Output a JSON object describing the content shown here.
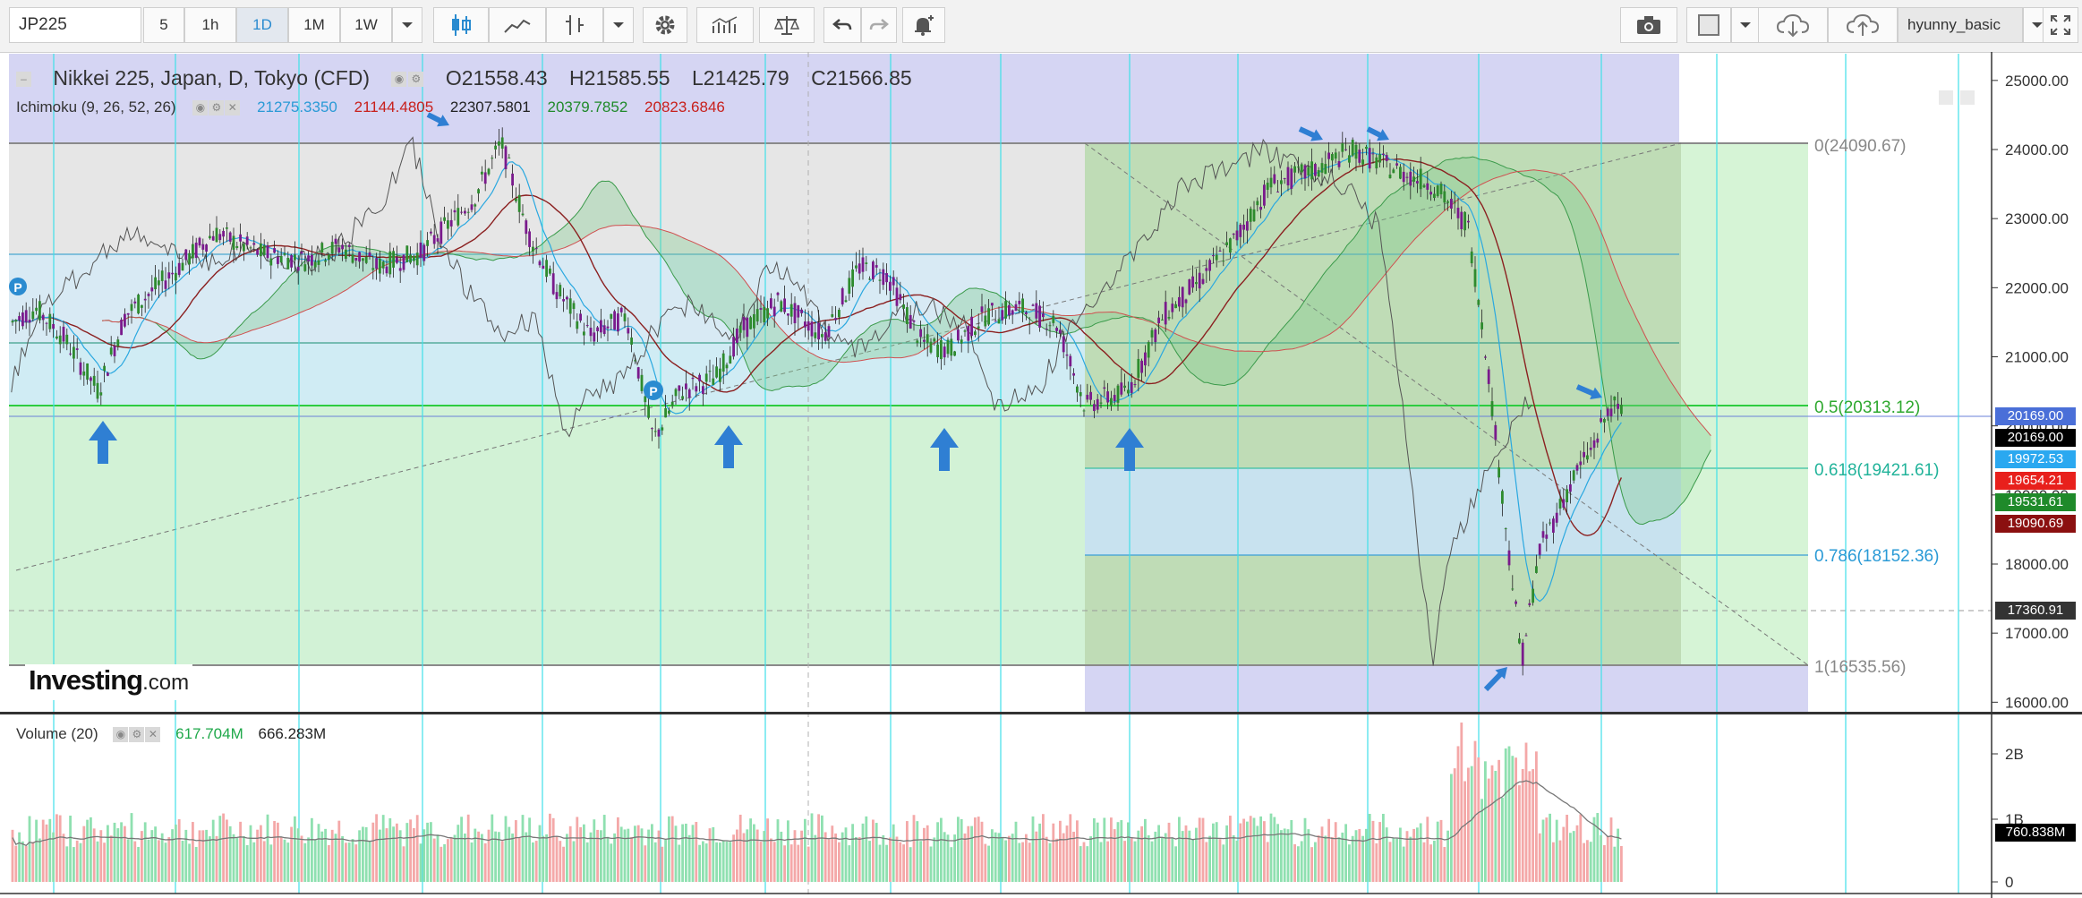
{
  "toolbar": {
    "symbol": "JP225",
    "intervals": [
      "5",
      "1h",
      "1D",
      "1M",
      "1W"
    ],
    "active_interval": "1D",
    "user": "hyunny_basic"
  },
  "legend": {
    "title": "Nikkei 225, Japan, D, Tokyo (CFD)",
    "open": "O21558.43",
    "high": "H21585.55",
    "low": "L21425.79",
    "close": "C21566.85",
    "ichimoku_label": "Ichimoku (9, 26, 52, 26)",
    "ichimoku_values": [
      "21275.3350",
      "21144.4805",
      "22307.5801",
      "20379.7852",
      "20823.6846"
    ],
    "volume_label": "Volume (20)",
    "volume_values": [
      "617.704M",
      "666.283M"
    ]
  },
  "watermark": {
    "brand": "Investing",
    "suffix": ".com"
  },
  "price_axis": [
    "25000.00",
    "24000.00",
    "23000.00",
    "22000.00",
    "21000.00",
    "20000.00",
    "19000.00",
    "18000.00",
    "17000.00",
    "16000.00"
  ],
  "volume_axis": [
    "2B",
    "1B",
    "0"
  ],
  "fib_labels": [
    "0(24090.67)",
    "0.5(20313.12)",
    "0.618(19421.61)",
    "0.786(18152.36)",
    "1(16535.56)"
  ],
  "price_boxes": [
    {
      "text": "20169.00",
      "bg": "#4a6fd8"
    },
    {
      "text": "20169.00",
      "bg": "#000000"
    },
    {
      "text": "19972.53",
      "bg": "#2aa8f0"
    },
    {
      "text": "19654.21",
      "bg": "#e8201c"
    },
    {
      "text": "19531.61",
      "bg": "#1f8a2a"
    },
    {
      "text": "19090.69",
      "bg": "#8b1010"
    },
    {
      "text": "17360.91",
      "bg": "#333333"
    }
  ],
  "volume_box": "760.838M",
  "colors": {
    "accent": "#2a8bd0",
    "up_candle": "#2e8b2e",
    "down_candle": "#7a1a8c",
    "fib_zone_green": "#cdeecd",
    "fib_zone_blue": "#cfe6f2",
    "purple_zone": "#d5d5f3"
  }
}
